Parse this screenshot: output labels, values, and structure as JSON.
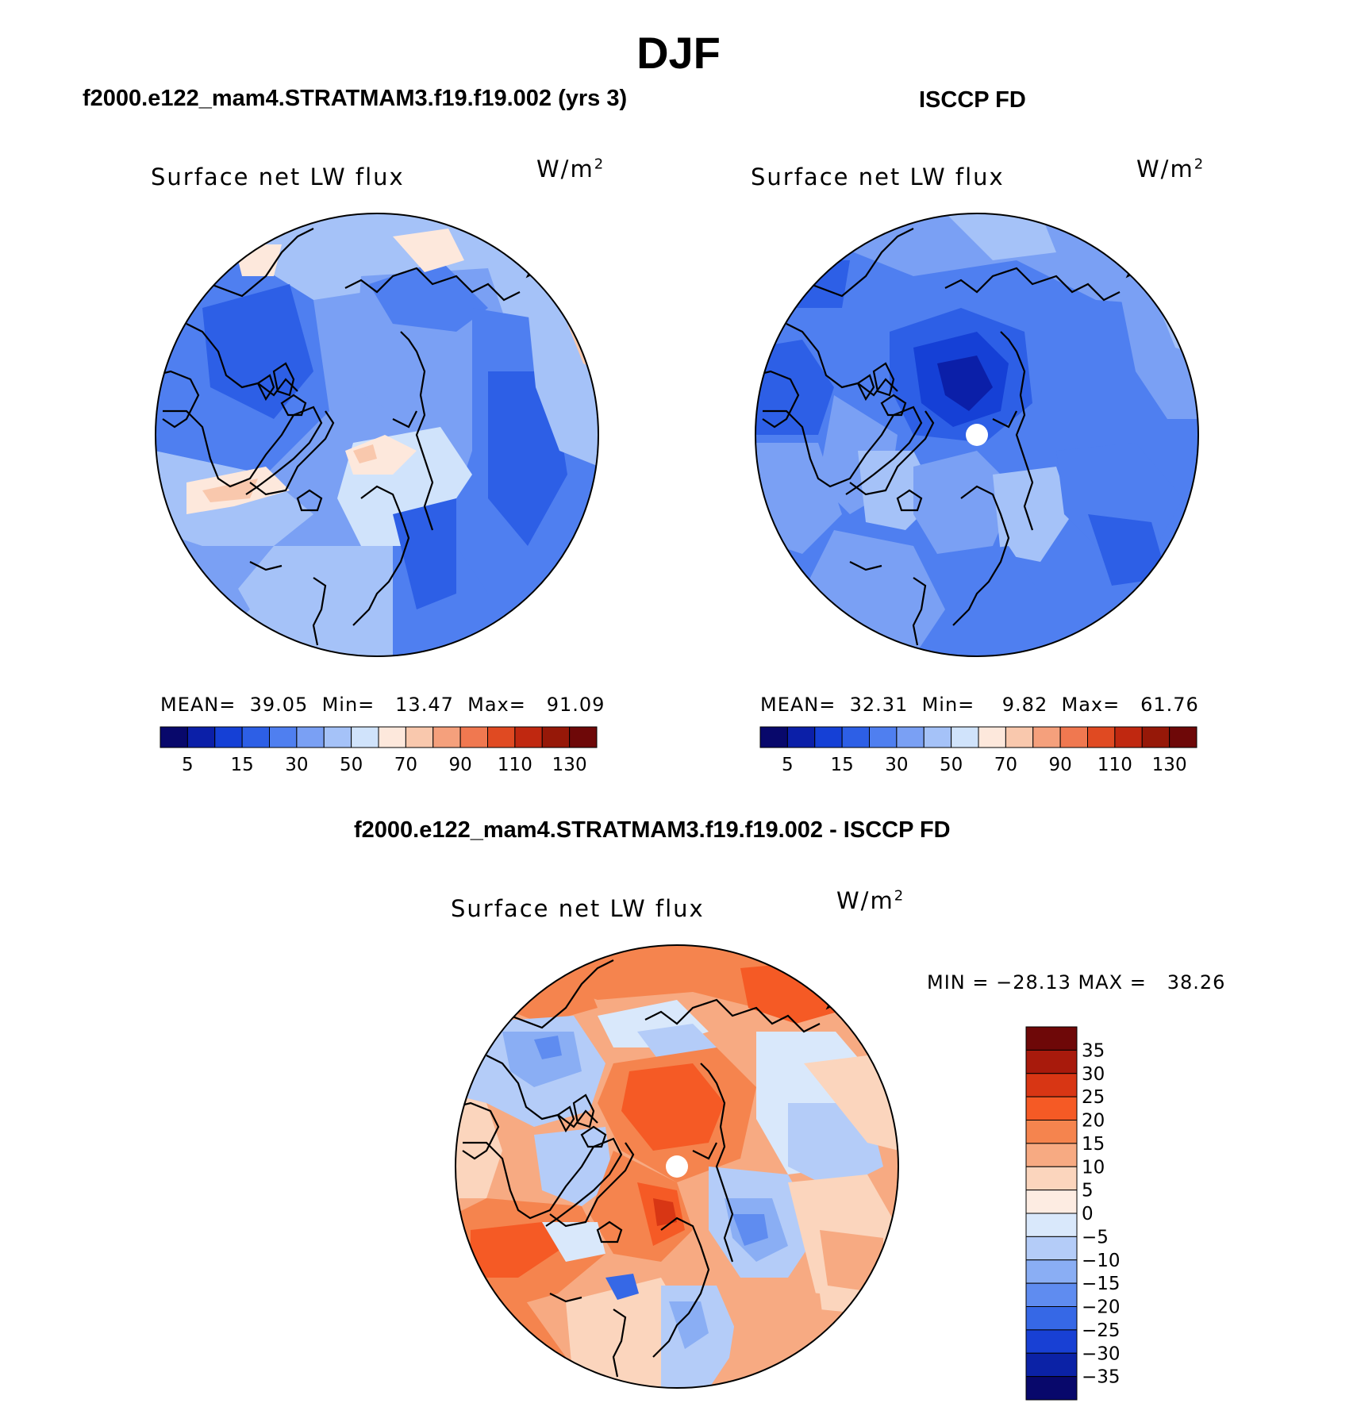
{
  "figure": {
    "title": "DJF"
  },
  "panels": {
    "model": {
      "header": "f2000.e122_mam4.STRATMAM3.f19.f19.002 (yrs 3)",
      "variable": "Surface net LW flux",
      "units_base": "W/m",
      "units_exp": "2",
      "stats_text": "MEAN=  39.05  Min=   13.47  Max=   91.09"
    },
    "obs": {
      "header": "ISCCP FD",
      "variable": "Surface net LW flux",
      "units_base": "W/m",
      "units_exp": "2",
      "stats_text": "MEAN=  32.31  Min=    9.82  Max=   61.76"
    },
    "diff": {
      "header": "f2000.e122_mam4.STRATMAM3.f19.f19.002 - ISCCP FD",
      "variable": "Surface net LW flux",
      "units_base": "W/m",
      "units_exp": "2",
      "stats_text": "MIN = −28.13 MAX =   38.26"
    }
  },
  "colorbars": {
    "abs": {
      "colors": [
        "#08086b",
        "#0b1fa8",
        "#1540d6",
        "#2d5fe6",
        "#4f7ff0",
        "#7aa0f4",
        "#a5c2f8",
        "#d0e3fb",
        "#fde8dc",
        "#f9c8ad",
        "#f5a07c",
        "#f07850",
        "#e04a22",
        "#c02810",
        "#961808",
        "#6e0808"
      ],
      "labels": [
        "5",
        "15",
        "30",
        "50",
        "70",
        "90",
        "110",
        "130"
      ]
    },
    "diff": {
      "colors": [
        "#6e0808",
        "#a81a0c",
        "#d83614",
        "#f55a25",
        "#f5844e",
        "#f7aa82",
        "#fbd5bd",
        "#fdece2",
        "#d9e8fb",
        "#b4ccf8",
        "#8aaef4",
        "#5f8cf0",
        "#3668e6",
        "#1840d4",
        "#0b22a6",
        "#08086b"
      ],
      "labels": [
        "35",
        "30",
        "25",
        "20",
        "15",
        "10",
        "5",
        "0",
        "−5",
        "−10",
        "−15",
        "−20",
        "−25",
        "−30",
        "−35"
      ]
    }
  }
}
